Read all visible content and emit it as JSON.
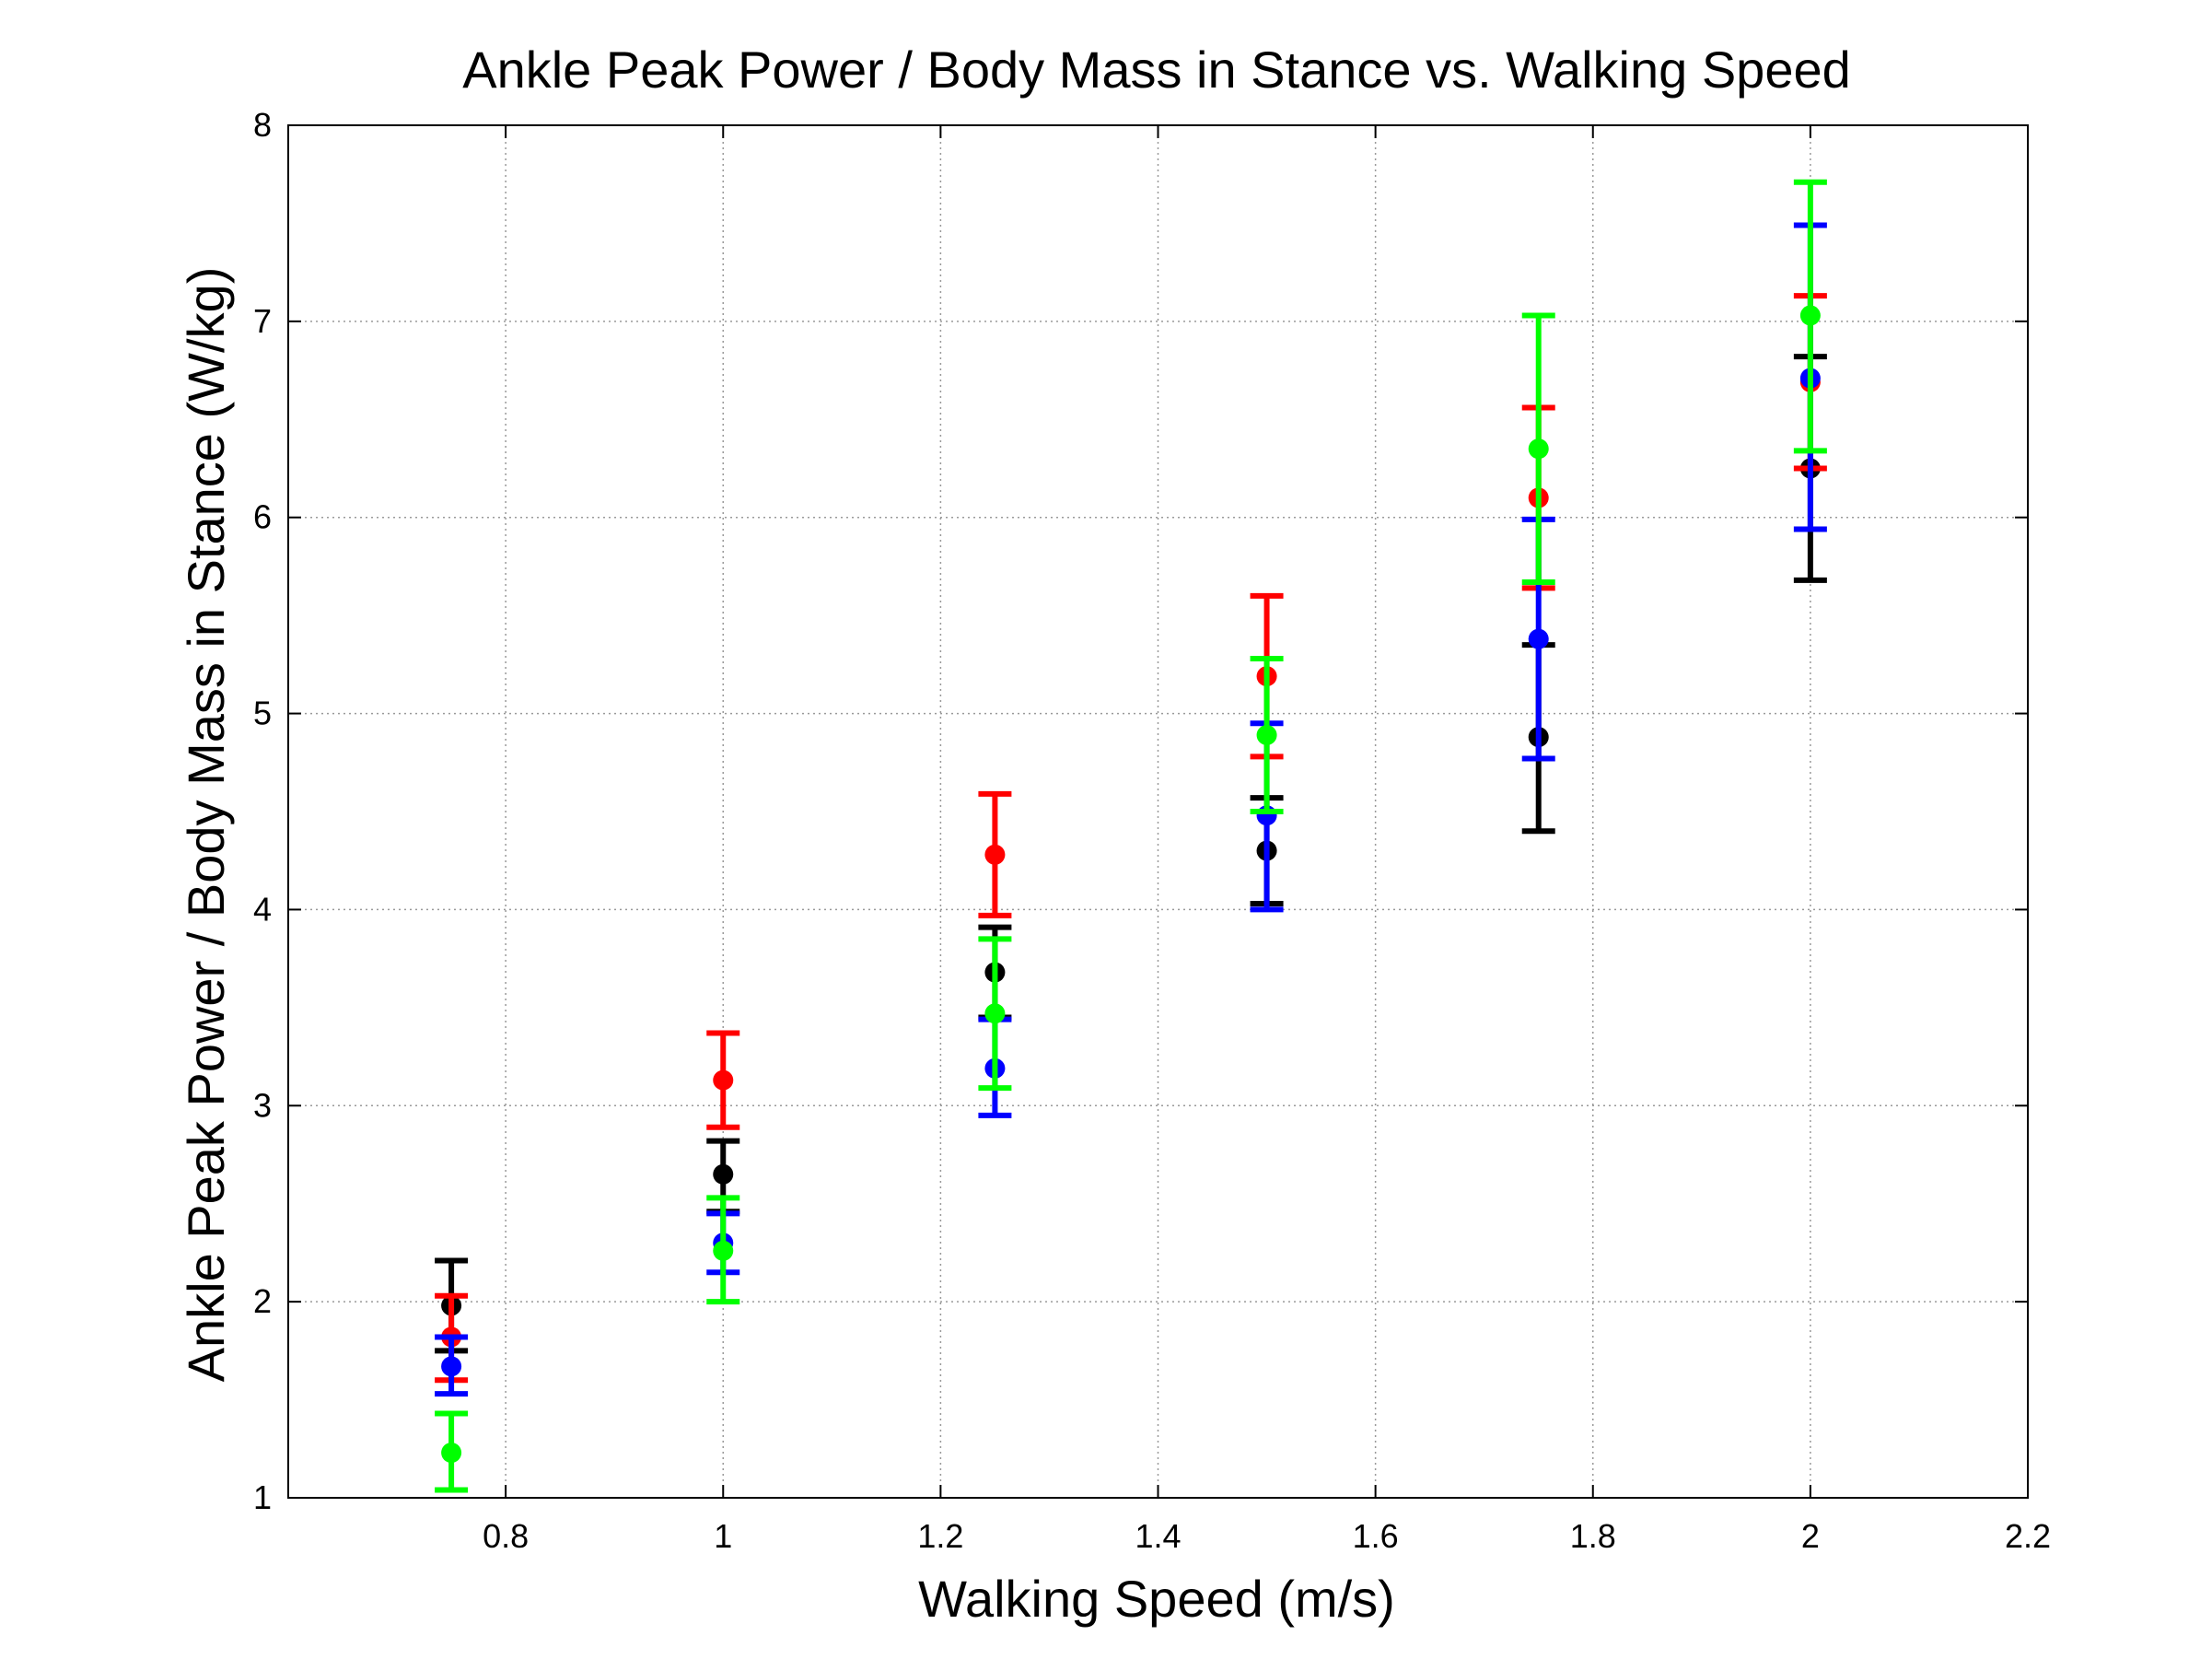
{
  "chart_data": {
    "type": "scatter",
    "title": "Ankle Peak Power / Body Mass in Stance vs. Walking Speed",
    "xlabel": "Walking Speed (m/s)",
    "ylabel": "Ankle Peak Power / Body Mass in Stance (W/kg)",
    "xlim": [
      0.6,
      2.2
    ],
    "ylim": [
      1,
      8
    ],
    "xticks": [
      "0.8",
      "1",
      "1.2",
      "1.4",
      "1.6",
      "1.8",
      "2",
      "2.2"
    ],
    "yticks": [
      "1",
      "2",
      "3",
      "4",
      "5",
      "6",
      "7",
      "8"
    ],
    "grid": true,
    "legend": "none",
    "error_bars": true,
    "series": [
      {
        "color": "#000000",
        "x": [
          0.75,
          1.0,
          1.25,
          1.5,
          1.75,
          2.0
        ],
        "y": [
          1.98,
          2.65,
          3.68,
          4.3,
          4.88,
          6.25
        ],
        "yerr_low": [
          1.75,
          2.46,
          3.45,
          4.03,
          4.4,
          5.68
        ],
        "yerr_high": [
          2.21,
          2.82,
          3.91,
          4.57,
          5.35,
          6.82
        ]
      },
      {
        "color": "#ff0000",
        "x": [
          0.75,
          1.0,
          1.25,
          1.5,
          1.75,
          2.0
        ],
        "y": [
          1.82,
          3.13,
          4.28,
          5.19,
          6.1,
          6.69
        ],
        "yerr_low": [
          1.6,
          2.89,
          3.97,
          4.78,
          5.64,
          6.25
        ],
        "yerr_high": [
          2.03,
          3.37,
          4.59,
          5.6,
          6.56,
          7.13
        ]
      },
      {
        "color": "#0000ff",
        "x": [
          0.75,
          1.0,
          1.25,
          1.5,
          1.75,
          2.0
        ],
        "y": [
          1.67,
          2.3,
          3.19,
          4.48,
          5.38,
          6.71
        ],
        "yerr_low": [
          1.53,
          2.15,
          2.95,
          4.0,
          4.77,
          5.94
        ],
        "yerr_high": [
          1.82,
          2.45,
          3.44,
          4.95,
          5.99,
          7.49
        ]
      },
      {
        "color": "#00ff00",
        "x": [
          0.75,
          1.0,
          1.25,
          1.5,
          1.75,
          2.0
        ],
        "y": [
          1.23,
          2.26,
          3.47,
          4.89,
          6.35,
          7.03
        ],
        "yerr_low": [
          1.04,
          2.0,
          3.09,
          4.5,
          5.67,
          6.34
        ],
        "yerr_high": [
          1.43,
          2.53,
          3.85,
          5.28,
          7.03,
          7.71
        ]
      }
    ]
  }
}
